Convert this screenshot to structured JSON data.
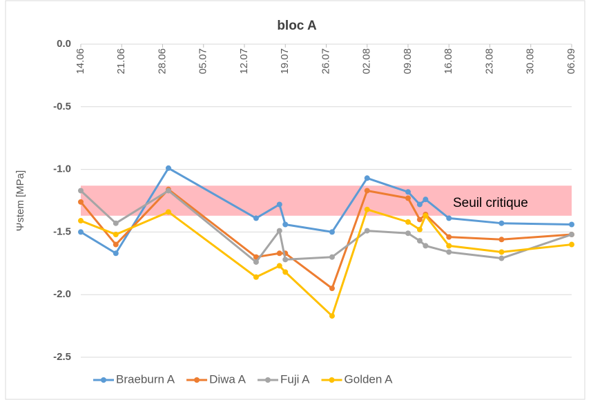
{
  "chart_data": {
    "type": "line",
    "title": "bloc A",
    "y_label": "Ψstem [MPa]",
    "x": [
      "14.06",
      "20.06",
      "29.06",
      "14.07",
      "18.07",
      "19.07",
      "27.07",
      "02.08",
      "09.08",
      "11.08",
      "12.08",
      "16.08",
      "25.08",
      "06.09"
    ],
    "xlim": [
      "14.06",
      "06.09"
    ],
    "xticks": [
      "14.06",
      "21.06",
      "28.06",
      "05.07",
      "12.07",
      "19.07",
      "26.07",
      "02.08",
      "09.08",
      "16.08",
      "23.08",
      "30.08",
      "06.09"
    ],
    "ylim": [
      -2.5,
      0
    ],
    "yticks": [
      {
        "value": 0,
        "label": "0.0"
      },
      -0.5,
      {
        "value": -1,
        "label": "-1.0"
      },
      -1.5,
      {
        "value": -2,
        "label": "-2.0"
      },
      -2.5
    ],
    "grid": true,
    "legend": "bottom",
    "band": {
      "label": "Seuil critique",
      "range": [
        -1.37,
        -1.13
      ],
      "color": "#ffb3b8"
    },
    "series": [
      {
        "name": "Braeburn A",
        "color": "#5b9bd5",
        "values": [
          -1.5,
          -1.67,
          -0.99,
          -1.39,
          -1.28,
          -1.44,
          -1.5,
          -1.07,
          -1.18,
          -1.28,
          -1.24,
          -1.39,
          -1.43,
          -1.44
        ]
      },
      {
        "name": "Diwa A",
        "color": "#ed7d31",
        "values": [
          -1.26,
          -1.6,
          -1.16,
          -1.7,
          -1.67,
          -1.67,
          -1.95,
          -1.17,
          -1.23,
          -1.4,
          -1.36,
          -1.54,
          -1.56,
          -1.52
        ]
      },
      {
        "name": "Fuji A",
        "color": "#a5a5a5",
        "values": [
          -1.17,
          -1.43,
          -1.17,
          -1.74,
          -1.49,
          -1.72,
          -1.7,
          -1.49,
          -1.51,
          -1.57,
          -1.61,
          -1.66,
          -1.71,
          -1.52
        ]
      },
      {
        "name": "Golden A",
        "color": "#ffc000",
        "values": [
          -1.41,
          -1.52,
          -1.34,
          -1.86,
          -1.77,
          -1.82,
          -2.17,
          -1.32,
          -1.42,
          -1.48,
          -1.37,
          -1.61,
          -1.66,
          -1.6
        ]
      }
    ]
  }
}
